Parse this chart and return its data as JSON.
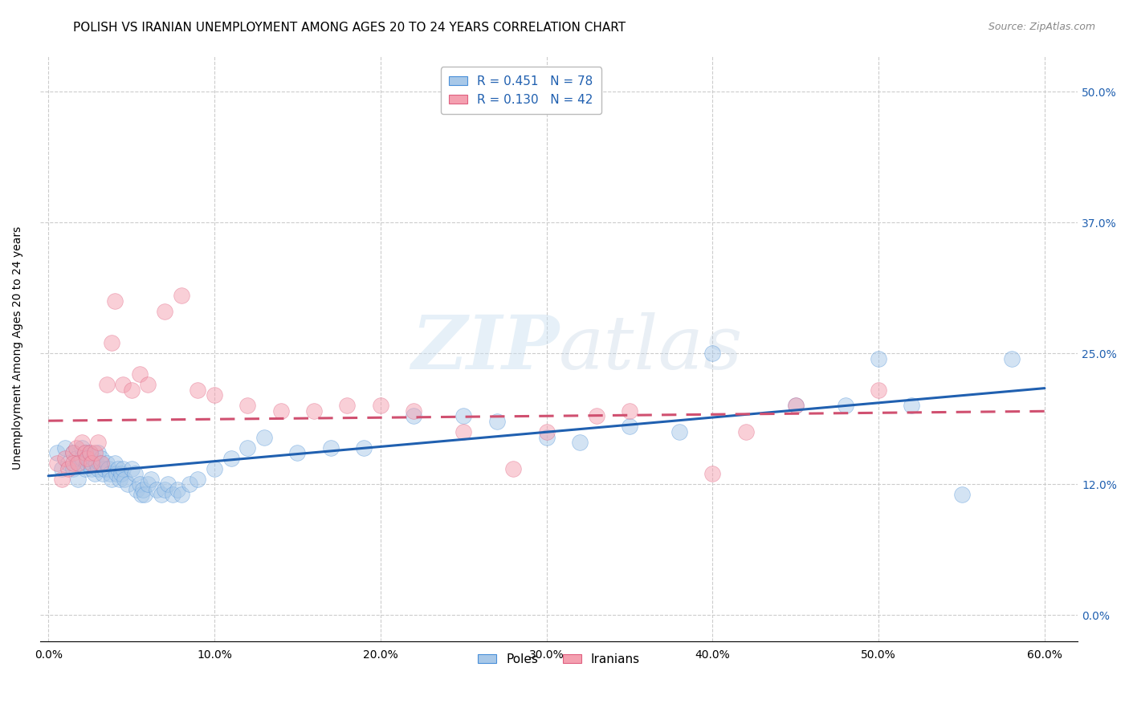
{
  "title": "POLISH VS IRANIAN UNEMPLOYMENT AMONG AGES 20 TO 24 YEARS CORRELATION CHART",
  "source": "Source: ZipAtlas.com",
  "ylabel": "Unemployment Among Ages 20 to 24 years",
  "xlabel_vals": [
    0.0,
    0.1,
    0.2,
    0.3,
    0.4,
    0.5,
    0.6
  ],
  "ylabel_vals": [
    0.0,
    0.125,
    0.25,
    0.375,
    0.5
  ],
  "xlim": [
    -0.005,
    0.62
  ],
  "ylim": [
    -0.025,
    0.535
  ],
  "blue_R": 0.451,
  "blue_N": 78,
  "pink_R": 0.13,
  "pink_N": 42,
  "blue_fill": "#a8c8e8",
  "blue_edge": "#4a90d9",
  "pink_fill": "#f4a0b0",
  "pink_edge": "#e06080",
  "blue_line_color": "#2060b0",
  "pink_line_color": "#d05070",
  "poles_label": "Poles",
  "iranians_label": "Iranians",
  "watermark_zip": "ZIP",
  "watermark_atlas": "atlas",
  "grid_color": "#cccccc",
  "background_color": "#ffffff",
  "title_fontsize": 11,
  "axis_label_fontsize": 10,
  "tick_fontsize": 10,
  "source_fontsize": 9,
  "legend_fontsize": 11,
  "blue_scatter_x": [
    0.005,
    0.008,
    0.01,
    0.012,
    0.015,
    0.015,
    0.017,
    0.018,
    0.019,
    0.02,
    0.02,
    0.022,
    0.022,
    0.023,
    0.024,
    0.025,
    0.025,
    0.026,
    0.027,
    0.028,
    0.029,
    0.03,
    0.03,
    0.031,
    0.032,
    0.033,
    0.034,
    0.035,
    0.036,
    0.037,
    0.038,
    0.04,
    0.041,
    0.042,
    0.043,
    0.044,
    0.045,
    0.046,
    0.048,
    0.05,
    0.052,
    0.053,
    0.055,
    0.056,
    0.057,
    0.058,
    0.06,
    0.062,
    0.065,
    0.068,
    0.07,
    0.072,
    0.075,
    0.078,
    0.08,
    0.085,
    0.09,
    0.1,
    0.11,
    0.12,
    0.13,
    0.15,
    0.17,
    0.19,
    0.22,
    0.25,
    0.27,
    0.3,
    0.32,
    0.35,
    0.38,
    0.4,
    0.45,
    0.48,
    0.5,
    0.52,
    0.55,
    0.58
  ],
  "blue_scatter_y": [
    0.155,
    0.14,
    0.16,
    0.145,
    0.155,
    0.14,
    0.15,
    0.13,
    0.145,
    0.16,
    0.15,
    0.155,
    0.14,
    0.145,
    0.15,
    0.155,
    0.145,
    0.14,
    0.15,
    0.135,
    0.145,
    0.155,
    0.14,
    0.145,
    0.15,
    0.135,
    0.14,
    0.145,
    0.14,
    0.135,
    0.13,
    0.145,
    0.135,
    0.14,
    0.13,
    0.135,
    0.14,
    0.13,
    0.125,
    0.14,
    0.135,
    0.12,
    0.125,
    0.115,
    0.12,
    0.115,
    0.125,
    0.13,
    0.12,
    0.115,
    0.12,
    0.125,
    0.115,
    0.12,
    0.115,
    0.125,
    0.13,
    0.14,
    0.15,
    0.16,
    0.17,
    0.155,
    0.16,
    0.16,
    0.19,
    0.19,
    0.185,
    0.17,
    0.165,
    0.18,
    0.175,
    0.25,
    0.2,
    0.2,
    0.245,
    0.2,
    0.115,
    0.245
  ],
  "pink_scatter_x": [
    0.005,
    0.008,
    0.01,
    0.012,
    0.015,
    0.015,
    0.017,
    0.018,
    0.02,
    0.022,
    0.023,
    0.025,
    0.026,
    0.028,
    0.03,
    0.032,
    0.035,
    0.038,
    0.04,
    0.045,
    0.05,
    0.055,
    0.06,
    0.07,
    0.08,
    0.09,
    0.1,
    0.12,
    0.14,
    0.16,
    0.18,
    0.2,
    0.22,
    0.25,
    0.28,
    0.3,
    0.33,
    0.35,
    0.4,
    0.42,
    0.45,
    0.5
  ],
  "pink_scatter_y": [
    0.145,
    0.13,
    0.15,
    0.14,
    0.155,
    0.145,
    0.16,
    0.145,
    0.165,
    0.155,
    0.15,
    0.155,
    0.145,
    0.155,
    0.165,
    0.145,
    0.22,
    0.26,
    0.3,
    0.22,
    0.215,
    0.23,
    0.22,
    0.29,
    0.305,
    0.215,
    0.21,
    0.2,
    0.195,
    0.195,
    0.2,
    0.2,
    0.195,
    0.175,
    0.14,
    0.175,
    0.19,
    0.195,
    0.135,
    0.175,
    0.2,
    0.215
  ]
}
